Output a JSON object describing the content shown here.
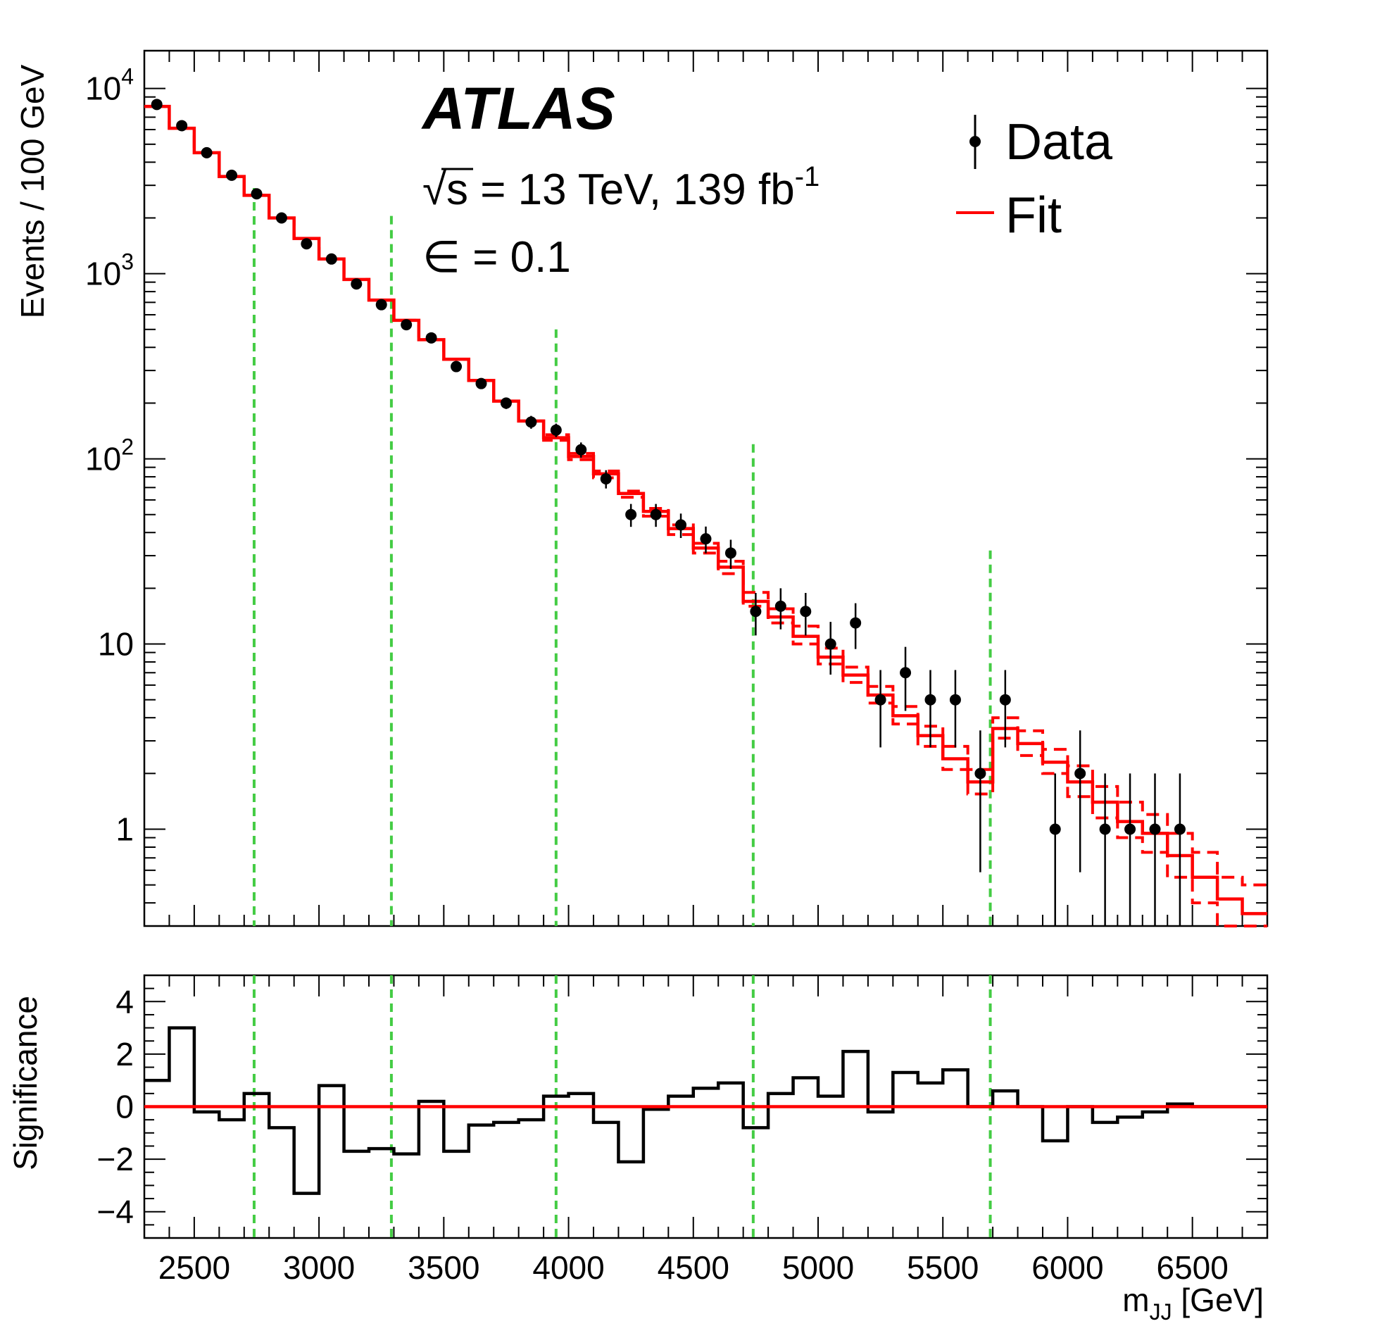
{
  "chart_data": [
    {
      "type": "scatter+step",
      "panel": "main",
      "ylabel": "Events / 100 GeV",
      "yscale": "log",
      "ylim": [
        0.3,
        16000
      ],
      "xlim": [
        2300,
        6800
      ],
      "ytick_labels": [
        {
          "value": 10000,
          "base": "10",
          "exp": "4"
        },
        {
          "value": 1000,
          "base": "10",
          "exp": "3"
        },
        {
          "value": 100,
          "base": "10",
          "exp": "2"
        },
        {
          "value": 10,
          "base": "10",
          "exp": ""
        },
        {
          "value": 1,
          "base": "1",
          "exp": ""
        }
      ],
      "annotations": {
        "experiment": "ATLAS",
        "energy_prefix": "√s = 13 TeV, 139 fb",
        "energy_sup": "-1",
        "epsilon": "∈ = 0.1"
      },
      "legend": {
        "position": "top-right",
        "entries": [
          {
            "label": "Data",
            "marker": "point-with-error"
          },
          {
            "label": "Fit",
            "marker": "line",
            "color": "#ff0000"
          }
        ]
      },
      "data": {
        "name": "Data",
        "x": [
          2350,
          2450,
          2550,
          2650,
          2750,
          2850,
          2950,
          3050,
          3150,
          3250,
          3350,
          3450,
          3550,
          3650,
          3750,
          3850,
          3950,
          4050,
          4150,
          4250,
          4350,
          4450,
          4550,
          4650,
          4750,
          4850,
          4950,
          5050,
          5150,
          5250,
          5350,
          5450,
          5550,
          5650,
          5750,
          5950,
          6050,
          6150,
          6250,
          6350,
          6450
        ],
        "y": [
          8200,
          6300,
          4500,
          3400,
          2700,
          2000,
          1450,
          1200,
          880,
          680,
          530,
          450,
          315,
          255,
          200,
          158,
          143,
          112,
          78,
          50,
          50,
          44,
          37,
          31,
          15,
          16,
          15,
          10,
          13,
          5,
          7,
          5,
          5,
          2,
          5,
          1,
          2,
          1,
          1,
          1,
          1
        ]
      },
      "fit": {
        "name": "Fit",
        "color": "#ff0000",
        "bin_edges": [
          2300,
          2400,
          2500,
          2600,
          2700,
          2800,
          2900,
          3000,
          3100,
          3200,
          3300,
          3400,
          3500,
          3600,
          3700,
          3800,
          3900,
          4000,
          4100,
          4200,
          4300,
          4400,
          4500,
          4600,
          4700,
          4800,
          4900,
          5000,
          5100,
          5200,
          5300,
          5400,
          5500,
          5600,
          5700,
          5800,
          5900,
          6000,
          6100,
          6200,
          6300,
          6400,
          6500,
          6600,
          6700,
          6800
        ],
        "values": [
          8000,
          6100,
          4500,
          3350,
          2650,
          2000,
          1550,
          1200,
          930,
          720,
          560,
          440,
          345,
          265,
          205,
          160,
          130,
          103,
          83,
          65,
          52,
          42,
          33,
          26,
          17,
          14,
          11,
          8.5,
          6.8,
          5.3,
          4.1,
          3.2,
          2.4,
          1.8,
          3.5,
          2.9,
          2.3,
          1.8,
          1.4,
          1.1,
          0.95,
          0.72,
          0.55,
          0.42,
          0.35
        ],
        "band_upper": [
          8000,
          6100,
          4500,
          3350,
          2650,
          2000,
          1550,
          1200,
          930,
          720,
          560,
          440,
          345,
          265,
          205,
          160,
          135,
          107,
          86,
          67,
          54,
          44,
          35,
          28,
          19,
          15.5,
          12.5,
          9.5,
          7.5,
          5.9,
          4.6,
          3.6,
          2.8,
          2.1,
          4.0,
          3.4,
          2.7,
          2.2,
          1.7,
          1.4,
          1.2,
          0.95,
          0.75,
          0.55,
          0.5
        ],
        "band_lower": [
          8000,
          6100,
          4500,
          3350,
          2650,
          2000,
          1550,
          1200,
          930,
          720,
          560,
          440,
          345,
          265,
          205,
          160,
          126,
          99,
          79,
          62,
          49,
          39,
          31,
          24,
          16,
          13,
          10,
          7.8,
          6.2,
          4.8,
          3.7,
          2.8,
          2.1,
          1.55,
          3.1,
          2.5,
          2.0,
          1.5,
          1.15,
          0.9,
          0.75,
          0.55,
          0.4,
          0.3,
          0.3
        ]
      },
      "vertical_lines": [
        2740,
        3290,
        3950,
        4740,
        5690
      ]
    },
    {
      "type": "step",
      "panel": "ratio",
      "ylabel": "Significance",
      "xlabel_main": "m",
      "xlabel_sub": "JJ",
      "xlabel_units": " [GeV]",
      "ylim": [
        -5,
        5
      ],
      "xlim": [
        2300,
        6800
      ],
      "x_ticks": [
        2500,
        3000,
        3500,
        4000,
        4500,
        5000,
        5500,
        6000,
        6500
      ],
      "x_tick_labels": [
        "2500",
        "3000",
        "3500",
        "4000",
        "4500",
        "5000",
        "5500",
        "6000",
        "6500"
      ],
      "y_ticks": [
        4,
        2,
        0,
        -2,
        -4
      ],
      "y_tick_labels": [
        "4",
        "2",
        "0",
        "−2",
        "−4"
      ],
      "bin_edges": [
        2300,
        2400,
        2500,
        2600,
        2700,
        2800,
        2900,
        3000,
        3100,
        3200,
        3300,
        3400,
        3500,
        3600,
        3700,
        3800,
        3900,
        4000,
        4100,
        4200,
        4300,
        4400,
        4500,
        4600,
        4700,
        4800,
        4900,
        5000,
        5100,
        5200,
        5300,
        5400,
        5500,
        5600,
        5700,
        5800,
        5900,
        6000,
        6100,
        6200,
        6300,
        6400,
        6500,
        6600,
        6700,
        6800
      ],
      "values": [
        1.0,
        3.0,
        -0.2,
        -0.5,
        0.5,
        -0.8,
        -3.3,
        0.8,
        -1.7,
        -1.6,
        -1.8,
        0.2,
        -1.7,
        -0.7,
        -0.6,
        -0.5,
        0.4,
        0.5,
        -0.6,
        -2.1,
        -0.1,
        0.4,
        0.7,
        0.9,
        -0.8,
        0.5,
        1.1,
        0.4,
        2.1,
        -0.2,
        1.3,
        0.9,
        1.4,
        0.0,
        0.6,
        0.0,
        -1.3,
        0.0,
        -0.6,
        -0.4,
        -0.2,
        0.1,
        0.0,
        0.0,
        0.0
      ],
      "reference_line": {
        "value": 0,
        "color": "#ff0000"
      },
      "vertical_lines": [
        2740,
        3290,
        3950,
        4740,
        5690
      ]
    }
  ]
}
